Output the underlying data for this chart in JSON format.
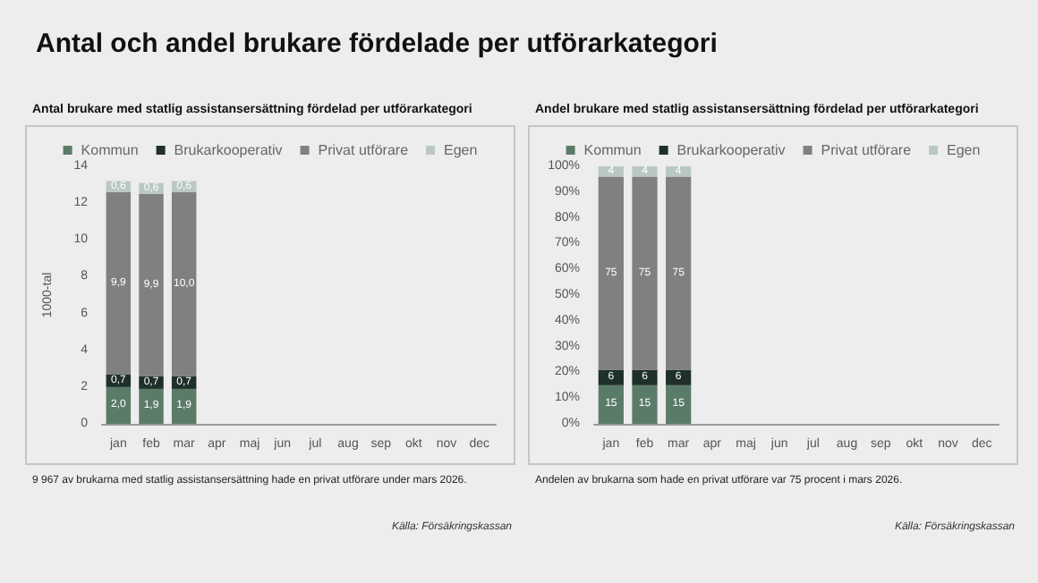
{
  "chart_data": [
    {
      "type": "bar",
      "title": "Antal och andel brukare fördelade per utförarkategori",
      "subtitle": "Antal brukare med statlig assistansersättning fördelad per utförarkategori",
      "ylabel": "1000-tal",
      "categories": [
        "jan",
        "feb",
        "mar",
        "apr",
        "maj",
        "jun",
        "jul",
        "aug",
        "sep",
        "okt",
        "nov",
        "dec"
      ],
      "stacked": true,
      "legend": "top",
      "ylim": [
        0,
        14
      ],
      "yticks": [
        0,
        2,
        4,
        6,
        8,
        10,
        12,
        14
      ],
      "series": [
        {
          "name": "Kommun",
          "color": "#5b7b69",
          "values": [
            2.0,
            1.9,
            1.9,
            null,
            null,
            null,
            null,
            null,
            null,
            null,
            null,
            null
          ],
          "value_labels": [
            "2,0",
            "1,9",
            "1,9",
            null,
            null,
            null,
            null,
            null,
            null,
            null,
            null,
            null
          ]
        },
        {
          "name": "Brukarkooperativ",
          "color": "#1f2f29",
          "values": [
            0.7,
            0.7,
            0.7,
            null,
            null,
            null,
            null,
            null,
            null,
            null,
            null,
            null
          ],
          "value_labels": [
            "0,7",
            "0,7",
            "0,7",
            null,
            null,
            null,
            null,
            null,
            null,
            null,
            null,
            null
          ]
        },
        {
          "name": "Privat utförare",
          "color": "#808080",
          "values": [
            9.9,
            9.9,
            10.0,
            null,
            null,
            null,
            null,
            null,
            null,
            null,
            null,
            null
          ],
          "value_labels": [
            "9,9",
            "9,9",
            "10,0",
            null,
            null,
            null,
            null,
            null,
            null,
            null,
            null,
            null
          ]
        },
        {
          "name": "Egen",
          "color": "#b9c9c1",
          "values": [
            0.6,
            0.6,
            0.6,
            null,
            null,
            null,
            null,
            null,
            null,
            null,
            null,
            null
          ],
          "value_labels": [
            "0,6",
            "0,6",
            "0,6",
            null,
            null,
            null,
            null,
            null,
            null,
            null,
            null,
            null
          ]
        }
      ],
      "annotations": [
        "9 967 av brukarna med statlig assistansersättning hade en privat utförare under mars 2026.",
        "Källa: Försäkringskassan"
      ]
    },
    {
      "type": "bar",
      "subtitle": "Andel brukare med statlig assistansersättning fördelad per utförarkategori",
      "categories": [
        "jan",
        "feb",
        "mar",
        "apr",
        "maj",
        "jun",
        "jul",
        "aug",
        "sep",
        "okt",
        "nov",
        "dec"
      ],
      "stacked": true,
      "legend": "top",
      "data_labels": true,
      "ylim": [
        0,
        100
      ],
      "yticks": [
        {
          "value": 0,
          "label": "0%"
        },
        {
          "value": 10,
          "label": "10%"
        },
        {
          "value": 20,
          "label": "20%"
        },
        {
          "value": 30,
          "label": "30%"
        },
        {
          "value": 40,
          "label": "40%"
        },
        {
          "value": 50,
          "label": "50%"
        },
        {
          "value": 60,
          "label": "60%"
        },
        {
          "value": 70,
          "label": "70%"
        },
        {
          "value": 80,
          "label": "80%"
        },
        {
          "value": 90,
          "label": "90%"
        },
        {
          "value": 100,
          "label": "100%"
        }
      ],
      "series": [
        {
          "name": "Kommun",
          "color": "#5b7b69",
          "values": [
            15,
            15,
            15,
            null,
            null,
            null,
            null,
            null,
            null,
            null,
            null,
            null
          ]
        },
        {
          "name": "Brukarkooperativ",
          "color": "#1f2f29",
          "values": [
            6,
            6,
            6,
            null,
            null,
            null,
            null,
            null,
            null,
            null,
            null,
            null
          ]
        },
        {
          "name": "Privat utförare",
          "color": "#808080",
          "values": [
            75,
            75,
            75,
            null,
            null,
            null,
            null,
            null,
            null,
            null,
            null,
            null
          ]
        },
        {
          "name": "Egen",
          "color": "#b9c9c1",
          "values": [
            4,
            4,
            4,
            null,
            null,
            null,
            null,
            null,
            null,
            null,
            null,
            null
          ]
        }
      ],
      "annotations": [
        "Andelen av brukarna som hade en privat utförare var 75 procent i mars 2026.",
        "Källa: Försäkringskassan"
      ]
    }
  ]
}
